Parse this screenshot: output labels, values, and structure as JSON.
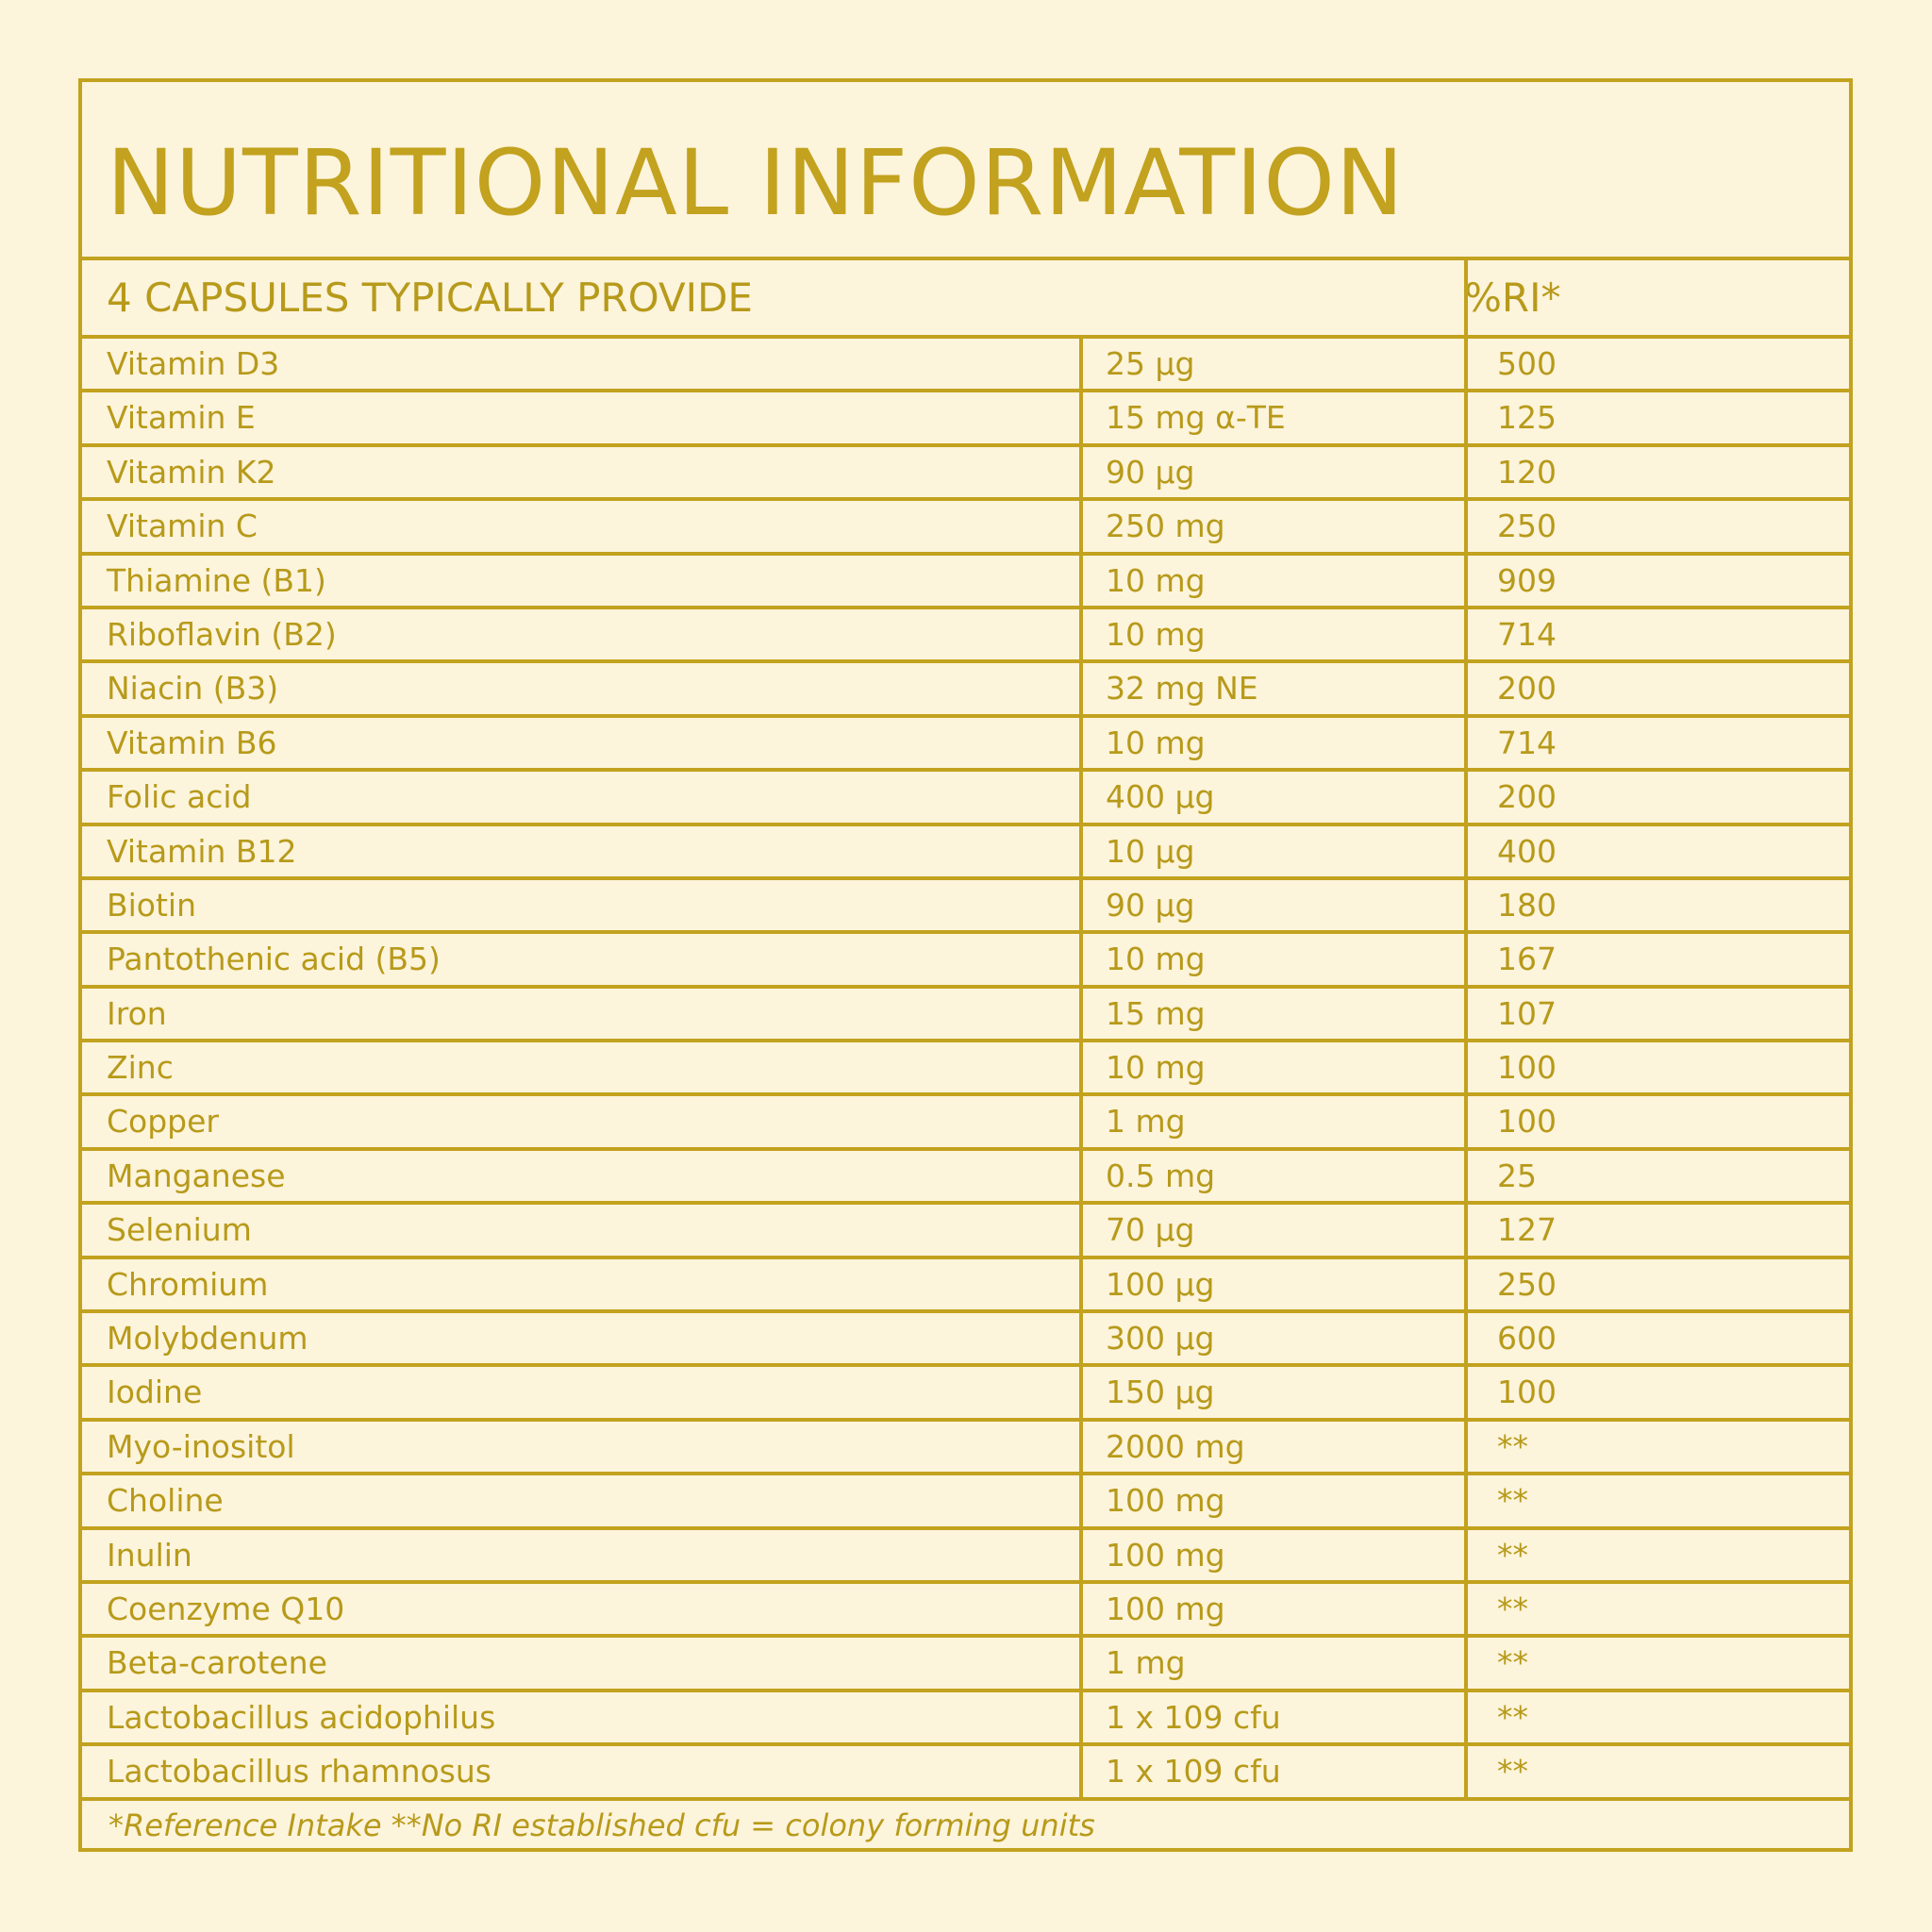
{
  "title": "NUTRITIONAL INFORMATION",
  "header": {
    "label": "4 CAPSULES TYPICALLY PROVIDE",
    "ri": "%RI*"
  },
  "rows": [
    {
      "name": "Vitamin D3",
      "amount": "25 µg",
      "ri": "500"
    },
    {
      "name": "Vitamin E",
      "amount": "15 mg α-TE",
      "ri": "125"
    },
    {
      "name": "Vitamin K2",
      "amount": "90 µg",
      "ri": "120"
    },
    {
      "name": "Vitamin C",
      "amount": "250 mg",
      "ri": "250"
    },
    {
      "name": "Thiamine (B1)",
      "amount": "10 mg",
      "ri": "909"
    },
    {
      "name": "Riboflavin (B2)",
      "amount": "10 mg",
      "ri": "714"
    },
    {
      "name": "Niacin (B3)",
      "amount": "32 mg NE",
      "ri": "200"
    },
    {
      "name": "Vitamin B6",
      "amount": "10 mg",
      "ri": "714"
    },
    {
      "name": "Folic acid",
      "amount": "400 µg",
      "ri": "200"
    },
    {
      "name": "Vitamin B12",
      "amount": "10 µg",
      "ri": "400"
    },
    {
      "name": "Biotin",
      "amount": "90 µg",
      "ri": "180"
    },
    {
      "name": "Pantothenic acid (B5)",
      "amount": "10 mg",
      "ri": "167"
    },
    {
      "name": "Iron",
      "amount": "15 mg",
      "ri": "107"
    },
    {
      "name": "Zinc",
      "amount": "10 mg",
      "ri": "100"
    },
    {
      "name": "Copper",
      "amount": "1 mg",
      "ri": "100"
    },
    {
      "name": "Manganese",
      "amount": "0.5 mg",
      "ri": "25"
    },
    {
      "name": "Selenium",
      "amount": "70 µg",
      "ri": "127"
    },
    {
      "name": "Chromium",
      "amount": "100 µg",
      "ri": "250"
    },
    {
      "name": "Molybdenum",
      "amount": "300 µg",
      "ri": "600"
    },
    {
      "name": "Iodine",
      "amount": "150 µg",
      "ri": "100"
    },
    {
      "name": "Myo-inositol",
      "amount": "2000 mg",
      "ri": "**"
    },
    {
      "name": "Choline",
      "amount": "100 mg",
      "ri": "**"
    },
    {
      "name": "Inulin",
      "amount": "100 mg",
      "ri": "**"
    },
    {
      "name": "Coenzyme Q10",
      "amount": "100 mg",
      "ri": "**"
    },
    {
      "name": "Beta-carotene",
      "amount": "1 mg",
      "ri": "**"
    },
    {
      "name": "Lactobacillus acidophilus",
      "amount": "1 x 109 cfu",
      "ri": "**"
    },
    {
      "name": "Lactobacillus rhamnosus",
      "amount": "1 x 109 cfu",
      "ri": "**"
    }
  ],
  "footnote": "*Reference Intake  **No RI established cfu = colony forming units",
  "colors": {
    "background": "#fdf4dc",
    "accent": "#c2a21e",
    "text": "#b79a1a"
  }
}
